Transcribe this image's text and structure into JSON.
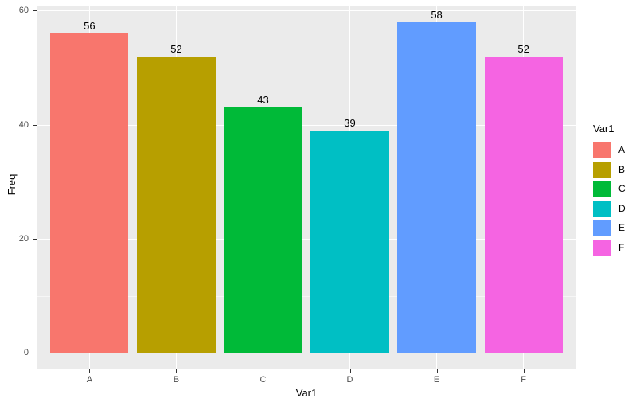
{
  "chart_data": {
    "type": "bar",
    "title": "",
    "xlabel": "Var1",
    "ylabel": "Freq",
    "categories": [
      "A",
      "B",
      "C",
      "D",
      "E",
      "F"
    ],
    "values": [
      56,
      52,
      43,
      39,
      58,
      52
    ],
    "value_labels": [
      "56",
      "52",
      "43",
      "39",
      "58",
      "52"
    ],
    "bar_colors": [
      "#F8766D",
      "#B79F00",
      "#00BA38",
      "#00BFC4",
      "#619CFF",
      "#F564E2"
    ],
    "y_major_ticks": [
      0,
      20,
      40,
      60
    ],
    "y_minor_ticks": [
      10,
      30,
      50
    ],
    "ylim": [
      -2.9,
      60.9
    ],
    "xlim": [
      0.4,
      6.6
    ],
    "bar_rel_width": 0.9,
    "grid": true,
    "legend": {
      "title": "Var1",
      "position": "right",
      "entries": [
        {
          "label": "A",
          "color": "#F8766D"
        },
        {
          "label": "B",
          "color": "#B79F00"
        },
        {
          "label": "C",
          "color": "#00BA38"
        },
        {
          "label": "D",
          "color": "#00BFC4"
        },
        {
          "label": "E",
          "color": "#619CFF"
        },
        {
          "label": "F",
          "color": "#F564E2"
        }
      ]
    },
    "theme": {
      "panel_bg": "#EBEBEB",
      "grid_major_color": "#FFFFFF",
      "grid_minor_color": "rgba(255,255,255,0.55)",
      "tick_label_color": "#4D4D4D",
      "axis_title_color": "#000000",
      "bar_label_color": "#000000",
      "tick_mark_color": "#333333"
    }
  }
}
